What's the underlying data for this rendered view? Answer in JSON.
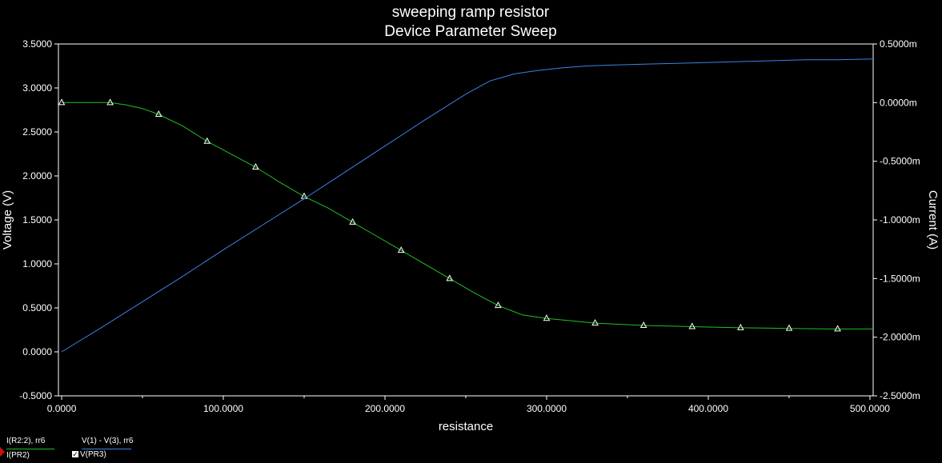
{
  "chart_data": {
    "type": "line",
    "title": "sweeping ramp resistor",
    "subtitle": "Device Parameter Sweep",
    "xlabel": "resistance",
    "ylabel_left": "Voltage (V)",
    "ylabel_right": "Current (A)",
    "xlim": [
      -2,
      502
    ],
    "ylim_left": [
      -0.5,
      3.5
    ],
    "ylim_right": [
      -0.0025,
      0.0005
    ],
    "x_ticks": [
      "0.0000",
      "100.0000",
      "200.0000",
      "300.0000",
      "400.0000",
      "500.0000"
    ],
    "y_left_ticks": [
      "3.5000",
      "3.0000",
      "2.5000",
      "2.0000",
      "1.5000",
      "1.0000",
      "0.5000",
      "0.0000",
      "-0.5000"
    ],
    "y_right_ticks": [
      "0.5000m",
      "0.0000m",
      "-0.5000m",
      "-1.0000m",
      "-1.5000m",
      "-2.0000m",
      "-2.5000m"
    ],
    "grid": false,
    "series": [
      {
        "name": "I(R2:2), rr6",
        "probe": "I(PR2)",
        "axis": "right",
        "color": "#20c020",
        "marker": "triangle",
        "x": [
          0,
          20,
          30,
          40,
          50,
          60,
          75,
          90,
          105,
          120,
          135,
          150,
          165,
          180,
          195,
          210,
          225,
          240,
          255,
          270,
          285,
          300,
          315,
          330,
          345,
          360,
          375,
          390,
          405,
          420,
          435,
          450,
          465,
          480,
          495,
          502
        ],
        "values": [
          0.0,
          0.0,
          0.0,
          -2e-05,
          -5e-05,
          -0.0001,
          -0.0002,
          -0.00033,
          -0.00044,
          -0.00055,
          -0.00068,
          -0.0008,
          -0.0009,
          -0.00102,
          -0.00114,
          -0.00126,
          -0.00138,
          -0.0015,
          -0.00162,
          -0.00173,
          -0.00181,
          -0.00184,
          -0.00186,
          -0.00188,
          -0.00189,
          -0.0019,
          -0.001905,
          -0.00191,
          -0.001915,
          -0.00192,
          -0.001922,
          -0.001925,
          -0.001928,
          -0.00193,
          -0.00193,
          -0.00193
        ],
        "marker_x": [
          0,
          30,
          60,
          90,
          120,
          150,
          180,
          210,
          240,
          270,
          300,
          330,
          360,
          390,
          420,
          450,
          480
        ]
      },
      {
        "name": "V(1) - V(3), rr6",
        "probe": "V(PR3)",
        "axis": "left",
        "color": "#3c82e6",
        "x": [
          0,
          25,
          50,
          75,
          100,
          125,
          150,
          175,
          200,
          225,
          250,
          265,
          280,
          295,
          310,
          325,
          340,
          360,
          380,
          400,
          420,
          440,
          460,
          480,
          502
        ],
        "values": [
          0.0,
          0.28,
          0.57,
          0.86,
          1.16,
          1.45,
          1.74,
          2.04,
          2.34,
          2.64,
          2.93,
          3.08,
          3.16,
          3.2,
          3.23,
          3.25,
          3.26,
          3.27,
          3.28,
          3.29,
          3.3,
          3.31,
          3.32,
          3.32,
          3.33
        ]
      }
    ]
  },
  "legend": [
    {
      "expr": "I(R2:2), rr6",
      "probe": "I(PR2)",
      "color": "#20c020"
    },
    {
      "expr": "V(1) - V(3), rr6",
      "probe": "V(PR3)",
      "color": "#3c82e6"
    }
  ]
}
